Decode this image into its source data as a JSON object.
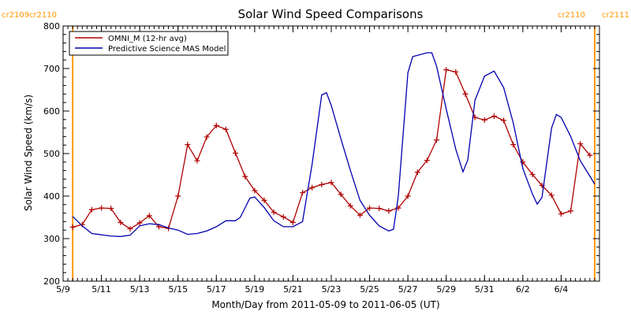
{
  "chart_data": {
    "type": "line",
    "title": "Solar Wind Speed Comparisons",
    "xlabel": "Month/Day from 2011-05-09 to 2011-06-05 (UT)",
    "ylabel": "Solar Wind Speed (km/s)",
    "ylim": [
      200,
      800
    ],
    "yticks": [
      200,
      300,
      400,
      500,
      600,
      700,
      800
    ],
    "xlim": [
      "2011-05-09",
      "2011-06-05"
    ],
    "xticks": [
      {
        "date": "2011-05-09",
        "label": "5/9"
      },
      {
        "date": "2011-05-11",
        "label": "5/11"
      },
      {
        "date": "2011-05-13",
        "label": "5/13"
      },
      {
        "date": "2011-05-15",
        "label": "5/15"
      },
      {
        "date": "2011-05-17",
        "label": "5/17"
      },
      {
        "date": "2011-05-19",
        "label": "5/19"
      },
      {
        "date": "2011-05-21",
        "label": "5/21"
      },
      {
        "date": "2011-05-23",
        "label": "5/23"
      },
      {
        "date": "2011-05-25",
        "label": "5/25"
      },
      {
        "date": "2011-05-27",
        "label": "5/27"
      },
      {
        "date": "2011-05-29",
        "label": "5/29"
      },
      {
        "date": "2011-05-31",
        "label": "5/31"
      },
      {
        "date": "2011-06-02",
        "label": "6/2"
      },
      {
        "date": "2011-06-04",
        "label": "6/4"
      }
    ],
    "legend_placement": "top-left",
    "carrington_markers": [
      {
        "date": "2011-05-09T12:00",
        "label_left": "cr2109",
        "label_right": "cr2110",
        "color": "#ff9900"
      },
      {
        "date": "2011-06-05T18:00",
        "label_left": "cr2110",
        "label_right": "cr2111",
        "color": "#ff9900"
      }
    ],
    "series": [
      {
        "name": "OMNI_M (12-hr avg)",
        "color": "#b00000",
        "marker": "plus",
        "points": [
          [
            "2011-05-09T12:00",
            327
          ],
          [
            "2011-05-10T00:00",
            333
          ],
          [
            "2011-05-10T12:00",
            368
          ],
          [
            "2011-05-11T00:00",
            372
          ],
          [
            "2011-05-11T12:00",
            371
          ],
          [
            "2011-05-12T00:00",
            338
          ],
          [
            "2011-05-12T12:00",
            323
          ],
          [
            "2011-05-13T00:00",
            337
          ],
          [
            "2011-05-13T12:00",
            354
          ],
          [
            "2011-05-14T00:00",
            328
          ],
          [
            "2011-05-14T12:00",
            324
          ],
          [
            "2011-05-15T00:00",
            400
          ],
          [
            "2011-05-15T12:00",
            521
          ],
          [
            "2011-05-16T00:00",
            483
          ],
          [
            "2011-05-16T12:00",
            539
          ],
          [
            "2011-05-17T00:00",
            566
          ],
          [
            "2011-05-17T12:00",
            557
          ],
          [
            "2011-05-18T00:00",
            501
          ],
          [
            "2011-05-18T12:00",
            446
          ],
          [
            "2011-05-19T00:00",
            413
          ],
          [
            "2011-05-19T12:00",
            390
          ],
          [
            "2011-05-20T00:00",
            362
          ],
          [
            "2011-05-20T12:00",
            351
          ],
          [
            "2011-05-21T00:00",
            338
          ],
          [
            "2011-05-21T12:00",
            408
          ],
          [
            "2011-05-22T00:00",
            420
          ],
          [
            "2011-05-22T12:00",
            427
          ],
          [
            "2011-05-23T00:00",
            432
          ],
          [
            "2011-05-23T12:00",
            404
          ],
          [
            "2011-05-24T00:00",
            377
          ],
          [
            "2011-05-24T12:00",
            355
          ],
          [
            "2011-05-25T00:00",
            372
          ],
          [
            "2011-05-25T12:00",
            371
          ],
          [
            "2011-05-26T00:00",
            365
          ],
          [
            "2011-05-26T12:00",
            372
          ],
          [
            "2011-05-27T00:00",
            400
          ],
          [
            "2011-05-27T12:00",
            456
          ],
          [
            "2011-05-28T00:00",
            484
          ],
          [
            "2011-05-28T12:00",
            532
          ],
          [
            "2011-05-29T00:00",
            697
          ],
          [
            "2011-05-29T12:00",
            692
          ],
          [
            "2011-05-30T00:00",
            640
          ],
          [
            "2011-05-30T12:00",
            585
          ],
          [
            "2011-05-31T00:00",
            579
          ],
          [
            "2011-05-31T12:00",
            588
          ],
          [
            "2011-06-01T00:00",
            578
          ],
          [
            "2011-06-01T12:00",
            521
          ],
          [
            "2011-06-02T00:00",
            480
          ],
          [
            "2011-06-02T12:00",
            451
          ],
          [
            "2011-06-03T00:00",
            425
          ],
          [
            "2011-06-03T12:00",
            402
          ],
          [
            "2011-06-04T00:00",
            358
          ],
          [
            "2011-06-04T12:00",
            365
          ],
          [
            "2011-06-05T00:00",
            523
          ],
          [
            "2011-06-05T12:00",
            496
          ]
        ]
      },
      {
        "name": "Predictive Science MAS Model",
        "color": "#0000b0",
        "marker": "none",
        "points": [
          [
            "2011-05-09T12:00",
            352
          ],
          [
            "2011-05-10T00:00",
            330
          ],
          [
            "2011-05-10T12:00",
            312
          ],
          [
            "2011-05-11T00:00",
            309
          ],
          [
            "2011-05-11T12:00",
            306
          ],
          [
            "2011-05-12T00:00",
            305
          ],
          [
            "2011-05-12T12:00",
            308
          ],
          [
            "2011-05-13T00:00",
            330
          ],
          [
            "2011-05-13T12:00",
            335
          ],
          [
            "2011-05-14T00:00",
            333
          ],
          [
            "2011-05-14T12:00",
            325
          ],
          [
            "2011-05-15T00:00",
            320
          ],
          [
            "2011-05-15T12:00",
            310
          ],
          [
            "2011-05-16T00:00",
            312
          ],
          [
            "2011-05-16T12:00",
            318
          ],
          [
            "2011-05-17T00:00",
            328
          ],
          [
            "2011-05-17T12:00",
            342
          ],
          [
            "2011-05-18T00:00",
            342
          ],
          [
            "2011-05-18T06:00",
            350
          ],
          [
            "2011-05-18T18:00",
            395
          ],
          [
            "2011-05-19T00:00",
            398
          ],
          [
            "2011-05-19T12:00",
            373
          ],
          [
            "2011-05-20T00:00",
            342
          ],
          [
            "2011-05-20T12:00",
            328
          ],
          [
            "2011-05-21T00:00",
            328
          ],
          [
            "2011-05-21T12:00",
            340
          ],
          [
            "2011-05-22T00:00",
            475
          ],
          [
            "2011-05-22T12:00",
            638
          ],
          [
            "2011-05-22T18:00",
            643
          ],
          [
            "2011-05-23T00:00",
            613
          ],
          [
            "2011-05-23T12:00",
            535
          ],
          [
            "2011-05-24T00:00",
            460
          ],
          [
            "2011-05-24T12:00",
            390
          ],
          [
            "2011-05-25T00:00",
            355
          ],
          [
            "2011-05-25T12:00",
            330
          ],
          [
            "2011-05-26T00:00",
            318
          ],
          [
            "2011-05-26T06:00",
            322
          ],
          [
            "2011-05-26T12:00",
            400
          ],
          [
            "2011-05-27T00:00",
            690
          ],
          [
            "2011-05-27T06:00",
            728
          ],
          [
            "2011-05-28T00:00",
            737
          ],
          [
            "2011-05-28T06:00",
            737
          ],
          [
            "2011-05-28T12:00",
            705
          ],
          [
            "2011-05-29T00:00",
            605
          ],
          [
            "2011-05-29T12:00",
            510
          ],
          [
            "2011-05-29T21:00",
            457
          ],
          [
            "2011-05-30T03:00",
            485
          ],
          [
            "2011-05-30T12:00",
            625
          ],
          [
            "2011-05-31T00:00",
            682
          ],
          [
            "2011-05-31T12:00",
            694
          ],
          [
            "2011-06-01T00:00",
            655
          ],
          [
            "2011-06-01T12:00",
            572
          ],
          [
            "2011-06-02T00:00",
            465
          ],
          [
            "2011-06-02T12:00",
            405
          ],
          [
            "2011-06-02T18:00",
            381
          ],
          [
            "2011-06-03T00:00",
            397
          ],
          [
            "2011-06-03T12:00",
            560
          ],
          [
            "2011-06-03T18:00",
            592
          ],
          [
            "2011-06-04T00:00",
            585
          ],
          [
            "2011-06-04T12:00",
            540
          ],
          [
            "2011-06-05T00:00",
            483
          ],
          [
            "2011-06-05T12:00",
            447
          ],
          [
            "2011-06-05T18:00",
            428
          ]
        ]
      }
    ]
  }
}
